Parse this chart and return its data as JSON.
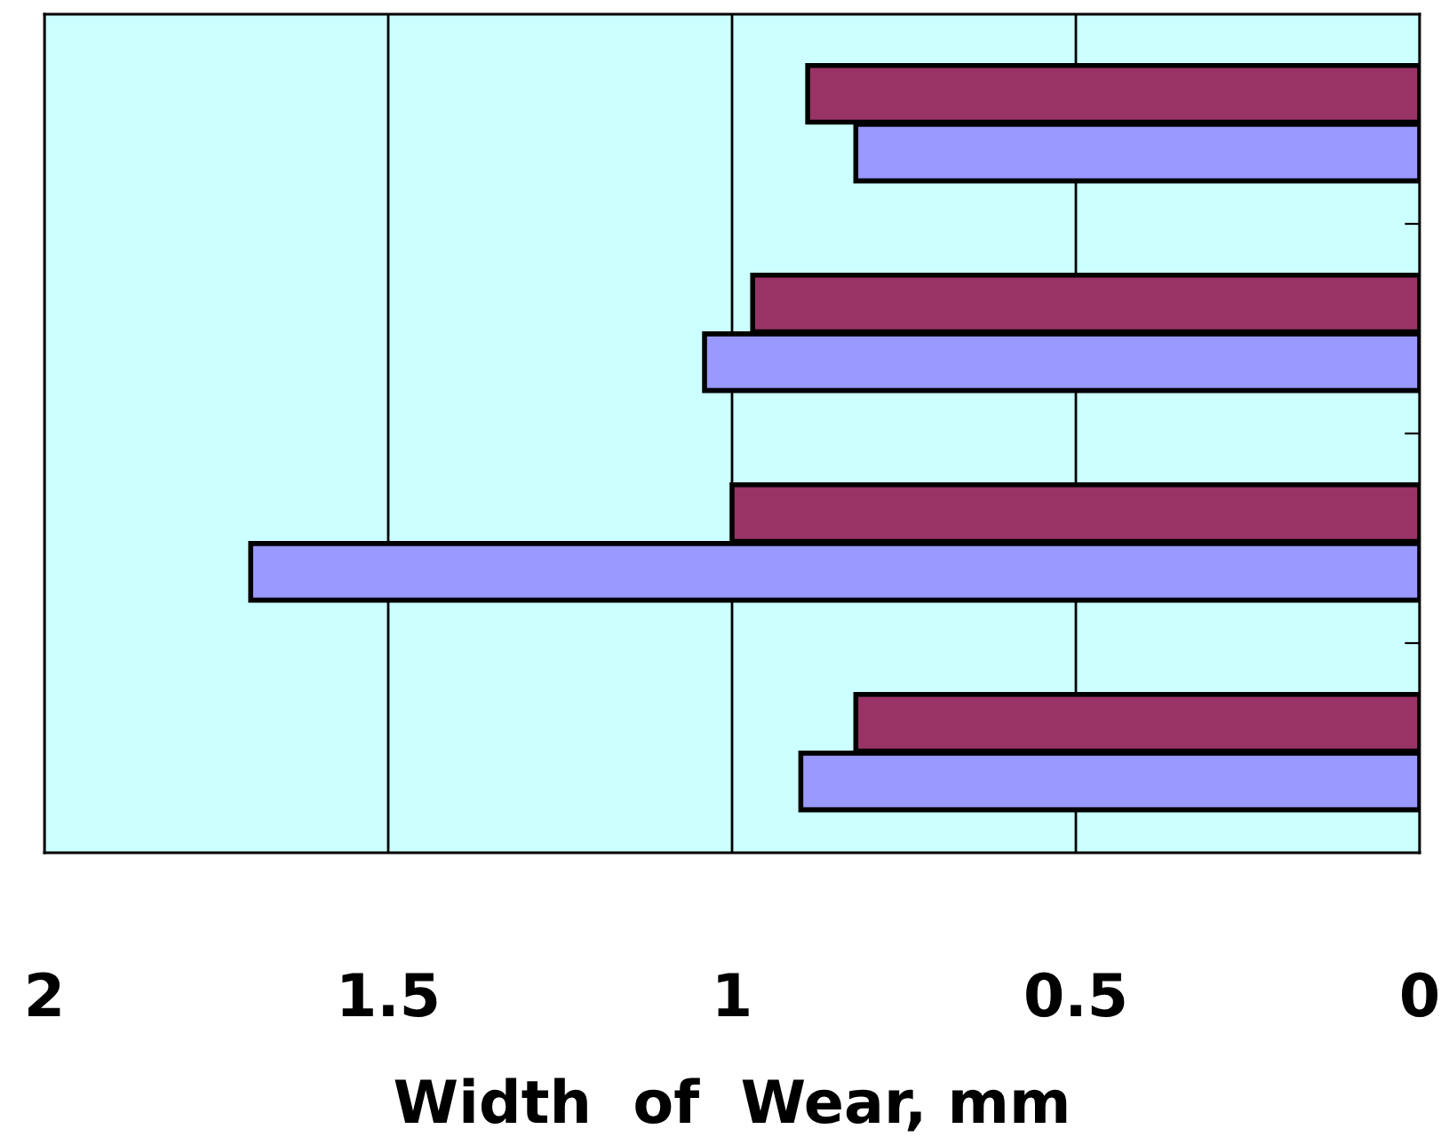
{
  "chart_data": {
    "type": "bar",
    "orientation": "horizontal",
    "xlabel": "Width  of  Wear, mm",
    "categories": [
      null,
      null,
      null,
      null
    ],
    "series": [
      {
        "color": "#993366",
        "values": [
          0.89,
          0.97,
          1.0,
          0.82
        ]
      },
      {
        "color": "#9999ff",
        "values": [
          0.82,
          1.04,
          1.7,
          0.9
        ]
      }
    ],
    "xlim": [
      2,
      0
    ],
    "xticks": [
      2,
      1.5,
      1,
      0.5,
      0
    ],
    "grid": "x",
    "tick_labels": "x",
    "legend": false
  }
}
